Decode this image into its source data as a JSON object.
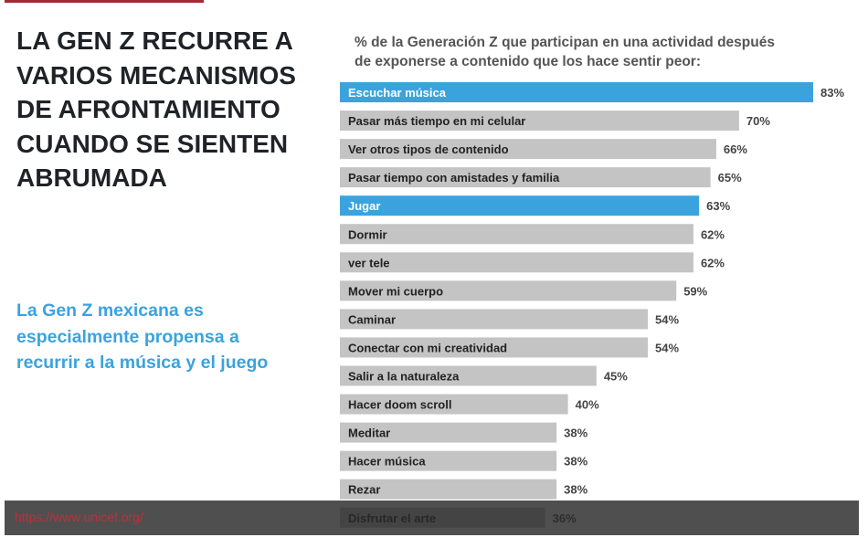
{
  "title": "LA GEN Z RECURRE A VARIOS MECANISMOS DE AFRONTAMIENTO CUANDO SE SIENTEN ABRUMADA",
  "subtitle": "La Gen Z mexicana es especialmente propensa a recurrir a la música y el juego",
  "footer_url": "https://www.unicef.org/",
  "colors": {
    "highlight": "#3aa3dd",
    "default": "#c4c4c4",
    "accent_bar": "#a52a35"
  },
  "chart_data": {
    "type": "bar",
    "orientation": "horizontal",
    "title": "% de la Generación Z que participan en una actividad después de exponerse a contenido que los hace sentir peor:",
    "categories": [
      "Escuchar música",
      "Pasar más tiempo en mi celular",
      "Ver otros tipos de contenido",
      "Pasar tiempo con amistades y familia",
      "Jugar",
      "Dormir",
      "ver tele",
      "Mover mi cuerpo",
      "Caminar",
      "Conectar con mi creatividad",
      "Salir a la naturaleza",
      "Hacer doom scroll",
      "Meditar",
      "Hacer música",
      "Rezar",
      "Disfrutar el arte"
    ],
    "values": [
      83,
      70,
      66,
      65,
      63,
      62,
      62,
      59,
      54,
      54,
      45,
      40,
      38,
      38,
      38,
      36
    ],
    "labels": [
      "83%",
      "70%",
      "66%",
      "65%",
      "63%",
      "62%",
      "62%",
      "59%",
      "54%",
      "54%",
      "45%",
      "40%",
      "38%",
      "38%",
      "38%",
      "36%"
    ],
    "highlighted": [
      "Escuchar música",
      "Jugar"
    ],
    "grid": false
  }
}
